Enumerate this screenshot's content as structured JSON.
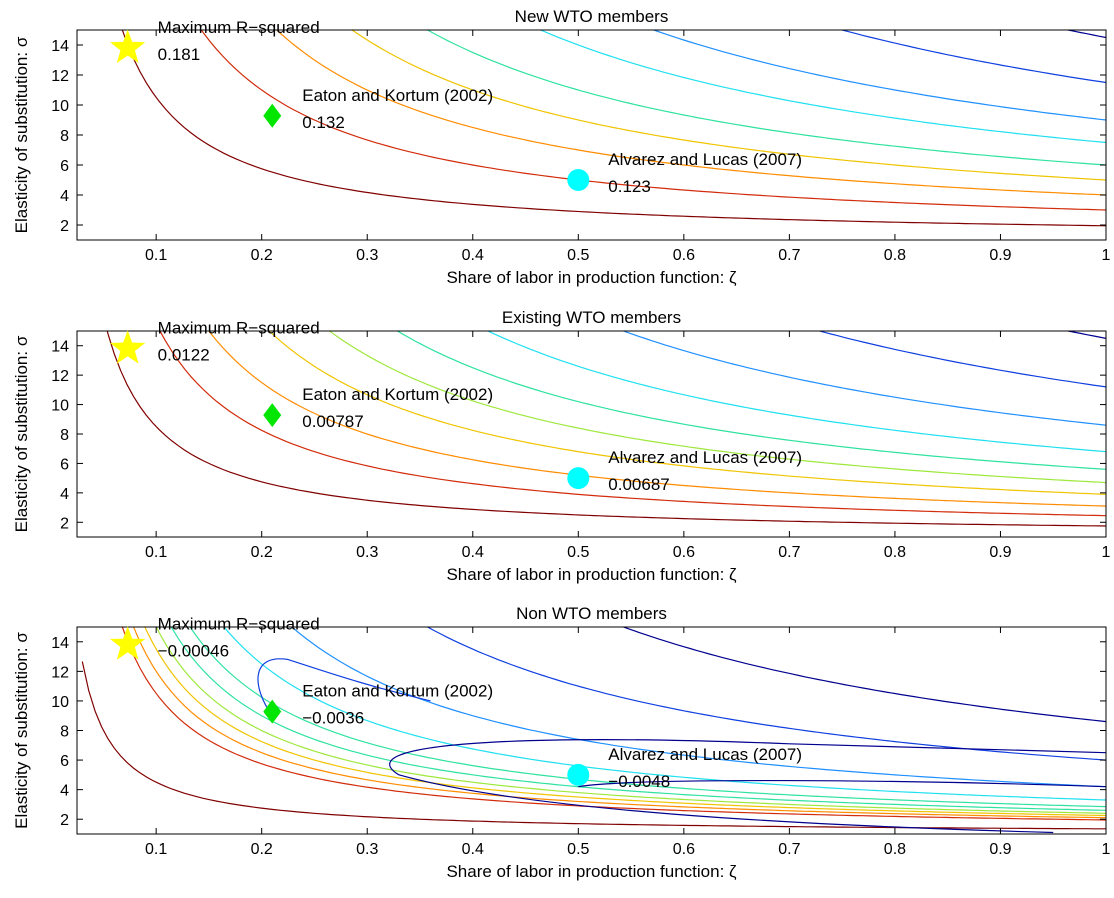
{
  "colors": {
    "contour_scale": [
      "#800000",
      "#d22c0b",
      "#ff8c00",
      "#f0c400",
      "#9ee83c",
      "#2fe2a0",
      "#20e0f0",
      "#2090ff",
      "#1040e0",
      "#00008f"
    ],
    "star": "#ffff00",
    "diamond": "#00e600",
    "circle": "#00ffff"
  },
  "chart_data": [
    {
      "type": "contour",
      "title": "New WTO members",
      "xlabel": "Share of labor in production function: ζ",
      "ylabel": "Elasticity of substitution: σ",
      "xlim": [
        0.025,
        1.0
      ],
      "ylim": [
        1.0,
        15.0
      ],
      "xticks": [
        "0.1",
        "0.2",
        "0.3",
        "0.4",
        "0.5",
        "0.6",
        "0.7",
        "0.8",
        "0.9",
        "1"
      ],
      "yticks": [
        "2",
        "4",
        "6",
        "8",
        "10",
        "12",
        "14"
      ],
      "grid": false,
      "contour_levels": [
        0.95,
        2.0,
        3.0,
        4.0,
        5.0,
        6.5,
        8.0,
        10.5,
        13.5
      ],
      "markers": [
        {
          "shape": "star",
          "name": "Maximum R−squared",
          "value": "0.181",
          "x": 0.073,
          "y": 13.8
        },
        {
          "shape": "diamond",
          "name": "Eaton and Kortum (2002)",
          "value": "0.132",
          "x": 0.21,
          "y": 9.28
        },
        {
          "shape": "circle",
          "name": "Alvarez and Lucas (2007)",
          "value": "0.123",
          "x": 0.5,
          "y": 5.0
        }
      ]
    },
    {
      "type": "contour",
      "title": "Existing WTO members",
      "xlabel": "Share of labor in production function: ζ",
      "ylabel": "Elasticity of substitution: σ",
      "xlim": [
        0.025,
        1.0
      ],
      "ylim": [
        1.0,
        15.0
      ],
      "xticks": [
        "0.1",
        "0.2",
        "0.3",
        "0.4",
        "0.5",
        "0.6",
        "0.7",
        "0.8",
        "0.9",
        "1"
      ],
      "yticks": [
        "2",
        "4",
        "6",
        "8",
        "10",
        "12",
        "14"
      ],
      "grid": false,
      "contour_levels": [
        0.75,
        1.45,
        2.1,
        2.9,
        3.7,
        4.6,
        5.8,
        7.6,
        10.2,
        13.5
      ],
      "markers": [
        {
          "shape": "star",
          "name": "Maximum R−squared",
          "value": "0.0122",
          "x": 0.073,
          "y": 13.8
        },
        {
          "shape": "diamond",
          "name": "Eaton and Kortum (2002)",
          "value": "0.00787",
          "x": 0.21,
          "y": 9.28
        },
        {
          "shape": "circle",
          "name": "Alvarez and Lucas (2007)",
          "value": "0.00687",
          "x": 0.5,
          "y": 5.0
        }
      ]
    },
    {
      "type": "contour",
      "title": "Non WTO members",
      "xlabel": "Share of labor in production function: ζ",
      "ylabel": "Elasticity of substitution: σ",
      "xlim": [
        0.025,
        1.0
      ],
      "ylim": [
        1.0,
        15.0
      ],
      "xticks": [
        "0.1",
        "0.2",
        "0.3",
        "0.4",
        "0.5",
        "0.6",
        "0.7",
        "0.8",
        "0.9",
        "1"
      ],
      "yticks": [
        "2",
        "4",
        "6",
        "8",
        "10",
        "12",
        "14"
      ],
      "grid": false,
      "contour_levels": [
        0.35,
        0.95,
        1.1,
        1.25,
        1.4,
        1.6,
        1.85,
        2.3,
        3.2,
        5.0,
        7.6
      ],
      "markers": [
        {
          "shape": "star",
          "name": "Maximum R−squared",
          "value": "−0.00046",
          "x": 0.073,
          "y": 13.8
        },
        {
          "shape": "diamond",
          "name": "Eaton and Kortum (2002)",
          "value": "−0.0036",
          "x": 0.21,
          "y": 9.28
        },
        {
          "shape": "circle",
          "name": "Alvarez and Lucas (2007)",
          "value": "−0.0048",
          "x": 0.5,
          "y": 5.0
        }
      ]
    }
  ]
}
